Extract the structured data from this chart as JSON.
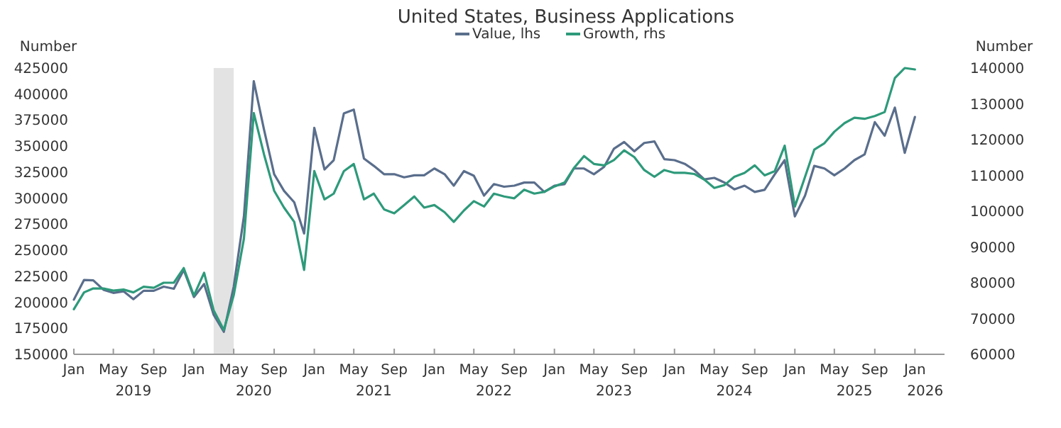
{
  "chart_data": {
    "type": "line",
    "title": "United States, Business Applications",
    "ylabel": "Number",
    "y2label": "Number",
    "legend": "top",
    "x": [
      "2019-01",
      "2019-02",
      "2019-03",
      "2019-04",
      "2019-05",
      "2019-06",
      "2019-07",
      "2019-08",
      "2019-09",
      "2019-10",
      "2019-11",
      "2019-12",
      "2020-01",
      "2020-02",
      "2020-03",
      "2020-04",
      "2020-05",
      "2020-06",
      "2020-07",
      "2020-08",
      "2020-09",
      "2020-10",
      "2020-11",
      "2020-12",
      "2021-01",
      "2021-02",
      "2021-03",
      "2021-04",
      "2021-05",
      "2021-06",
      "2021-07",
      "2021-08",
      "2021-09",
      "2021-10",
      "2021-11",
      "2021-12",
      "2022-01",
      "2022-02",
      "2022-03",
      "2022-04",
      "2022-05",
      "2022-06",
      "2022-07",
      "2022-08",
      "2022-09",
      "2022-10",
      "2022-11",
      "2022-12",
      "2023-01",
      "2023-02",
      "2023-03",
      "2023-04",
      "2023-05",
      "2023-06",
      "2023-07",
      "2023-08",
      "2023-09",
      "2023-10",
      "2023-11",
      "2023-12",
      "2024-01",
      "2024-02",
      "2024-03",
      "2024-04",
      "2024-05",
      "2024-06",
      "2024-07",
      "2024-08",
      "2024-09",
      "2024-10",
      "2024-11",
      "2024-12",
      "2025-01",
      "2025-02",
      "2025-03",
      "2025-04",
      "2025-05",
      "2025-06",
      "2025-07",
      "2025-08",
      "2025-09",
      "2025-10",
      "2025-11",
      "2025-12",
      "2026-01"
    ],
    "series": [
      {
        "name": "Value, lhs",
        "color": "#5a6e8c",
        "values": [
          202500,
          221400,
          221000,
          212000,
          209000,
          210500,
          203000,
          211000,
          211000,
          215000,
          213000,
          231000,
          205000,
          217500,
          188000,
          171600,
          215000,
          282500,
          412400,
          366000,
          323000,
          307000,
          296000,
          266000,
          367500,
          327500,
          336500,
          381500,
          385000,
          338000,
          331000,
          323000,
          323000,
          320000,
          322000,
          322000,
          328500,
          323000,
          312000,
          326000,
          321500,
          302500,
          313500,
          311000,
          312000,
          315000,
          315000,
          306000,
          312000,
          313500,
          328500,
          328500,
          323000,
          330000,
          347500,
          354000,
          345000,
          353000,
          354500,
          337500,
          336500,
          333000,
          327000,
          318000,
          319500,
          315000,
          308500,
          312000,
          306000,
          308000,
          323000,
          336500,
          282500,
          302500,
          331000,
          328500,
          322000,
          328500,
          336500,
          342000,
          373000,
          360000,
          387000,
          343500,
          378000
        ]
      },
      {
        "name": "Growth, rhs",
        "color": "#2e9a7a",
        "axis": "y2",
        "values": [
          72600,
          77300,
          78400,
          78400,
          77800,
          78100,
          77300,
          78900,
          78600,
          80000,
          80000,
          84100,
          76400,
          82800,
          72300,
          66800,
          76500,
          92300,
          127400,
          115900,
          105700,
          101000,
          97000,
          83600,
          111200,
          103300,
          104900,
          111200,
          113200,
          103300,
          104900,
          100500,
          99400,
          101700,
          104100,
          101000,
          101700,
          99700,
          97000,
          100200,
          102800,
          101300,
          104900,
          104100,
          103600,
          106000,
          104900,
          105400,
          106900,
          108000,
          112000,
          115400,
          113200,
          112800,
          114300,
          117000,
          115100,
          111500,
          109600,
          111500,
          110700,
          110700,
          110400,
          108800,
          106500,
          107300,
          109600,
          110700,
          112800,
          110000,
          111200,
          118300,
          101300,
          109600,
          117200,
          119000,
          122200,
          124600,
          126100,
          125800,
          126600,
          127700,
          137200,
          140000,
          139600
        ]
      }
    ],
    "xlim": [
      "2019-01",
      "2026-04"
    ],
    "xticks": [
      {
        "value": "2019-01",
        "label": "Jan"
      },
      {
        "value": "2019-05",
        "label": "May"
      },
      {
        "value": "2019-09",
        "label": "Sep"
      },
      {
        "value": "2020-01",
        "label": "Jan"
      },
      {
        "value": "2020-05",
        "label": "May"
      },
      {
        "value": "2020-09",
        "label": "Sep"
      },
      {
        "value": "2021-01",
        "label": "Jan"
      },
      {
        "value": "2021-05",
        "label": "May"
      },
      {
        "value": "2021-09",
        "label": "Sep"
      },
      {
        "value": "2022-01",
        "label": "Jan"
      },
      {
        "value": "2022-05",
        "label": "May"
      },
      {
        "value": "2022-09",
        "label": "Sep"
      },
      {
        "value": "2023-01",
        "label": "Jan"
      },
      {
        "value": "2023-05",
        "label": "May"
      },
      {
        "value": "2023-09",
        "label": "Sep"
      },
      {
        "value": "2024-01",
        "label": "Jan"
      },
      {
        "value": "2024-05",
        "label": "May"
      },
      {
        "value": "2024-09",
        "label": "Sep"
      },
      {
        "value": "2025-01",
        "label": "Jan"
      },
      {
        "value": "2025-05",
        "label": "May"
      },
      {
        "value": "2025-09",
        "label": "Sep"
      },
      {
        "value": "2026-01",
        "label": "Jan"
      }
    ],
    "x2lim": [
      "2019-01",
      "2026-04"
    ],
    "x2ticks": [
      {
        "value": "2019-07",
        "label": "2019"
      },
      {
        "value": "2020-07",
        "label": "2020"
      },
      {
        "value": "2021-07",
        "label": "2021"
      },
      {
        "value": "2022-07",
        "label": "2022"
      },
      {
        "value": "2023-07",
        "label": "2023"
      },
      {
        "value": "2024-07",
        "label": "2024"
      },
      {
        "value": "2025-07",
        "label": "2025"
      },
      {
        "value": "2026-02",
        "label": "2026"
      }
    ],
    "ylim": [
      150000,
      425000
    ],
    "yticks": [
      150000,
      175000,
      200000,
      225000,
      250000,
      275000,
      300000,
      325000,
      350000,
      375000,
      400000,
      425000
    ],
    "y2lim": [
      60000,
      140000
    ],
    "y2ticks": [
      60000,
      70000,
      80000,
      90000,
      100000,
      110000,
      120000,
      130000,
      140000
    ],
    "bands": [
      {
        "axis": "x",
        "from": "2020-03",
        "to": "2020-05",
        "color": "#e3e3e3"
      }
    ],
    "grid": false,
    "line_style": "solid",
    "marker": "none"
  }
}
